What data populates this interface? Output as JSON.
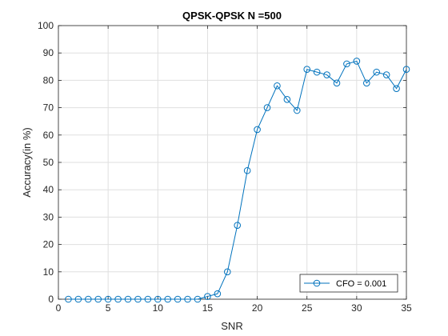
{
  "chart_data": {
    "type": "line",
    "title": "QPSK-QPSK N =500",
    "xlabel": "SNR",
    "ylabel": "Accuracy(in %)",
    "xlim": [
      0,
      35
    ],
    "ylim": [
      0,
      100
    ],
    "xticks": [
      0,
      5,
      10,
      15,
      20,
      25,
      30,
      35
    ],
    "yticks": [
      0,
      10,
      20,
      30,
      40,
      50,
      60,
      70,
      80,
      90,
      100
    ],
    "grid": true,
    "legend_position": "bottom-right",
    "x": [
      1,
      2,
      3,
      4,
      5,
      6,
      7,
      8,
      9,
      10,
      11,
      12,
      13,
      14,
      15,
      16,
      17,
      18,
      19,
      20,
      21,
      22,
      23,
      24,
      25,
      26,
      27,
      28,
      29,
      30,
      31,
      32,
      33,
      34,
      35
    ],
    "series": [
      {
        "name": "CFO = 0.001",
        "color": "#0072BD",
        "marker": "circle",
        "values": [
          0,
          0,
          0,
          0,
          0,
          0,
          0,
          0,
          0,
          0,
          0,
          0,
          0,
          0,
          1,
          2,
          10,
          27,
          47,
          62,
          70,
          78,
          73,
          69,
          84,
          83,
          82,
          79,
          86,
          87,
          79,
          83,
          82,
          77,
          84
        ]
      }
    ]
  }
}
